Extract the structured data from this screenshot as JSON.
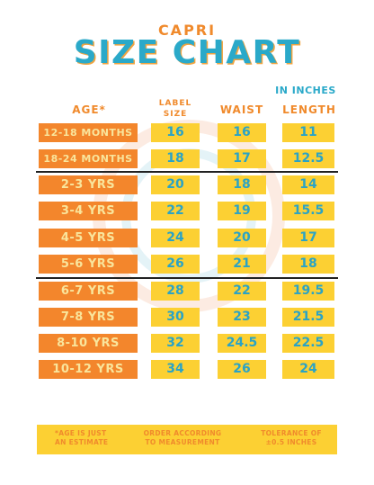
{
  "header": {
    "subtitle": "CAPRI",
    "title": "SIZE CHART",
    "units": "IN INCHES"
  },
  "columns": {
    "age": "AGE*",
    "label_line1": "LABEL",
    "label_line2": "SIZE",
    "waist": "WAIST",
    "length": "LENGTH"
  },
  "rows": [
    {
      "age": "12-18 MONTHS",
      "label": "16",
      "waist": "16",
      "length": "11"
    },
    {
      "age": "18-24 MONTHS",
      "label": "18",
      "waist": "17",
      "length": "12.5"
    },
    {
      "age": "2-3 YRS",
      "label": "20",
      "waist": "18",
      "length": "14"
    },
    {
      "age": "3-4 YRS",
      "label": "22",
      "waist": "19",
      "length": "15.5"
    },
    {
      "age": "4-5 YRS",
      "label": "24",
      "waist": "20",
      "length": "17"
    },
    {
      "age": "5-6 YRS",
      "label": "26",
      "waist": "21",
      "length": "18"
    },
    {
      "age": "6-7 YRS",
      "label": "28",
      "waist": "22",
      "length": "19.5"
    },
    {
      "age": "7-8 YRS",
      "label": "30",
      "waist": "23",
      "length": "21.5"
    },
    {
      "age": "8-10 YRS",
      "label": "32",
      "waist": "24.5",
      "length": "22.5"
    },
    {
      "age": "10-12 YRS",
      "label": "34",
      "waist": "26",
      "length": "24"
    }
  ],
  "footer": {
    "note1_line1": "*AGE IS JUST",
    "note1_line2": "AN ESTIMATE",
    "note2_line1": "ORDER ACCORDING",
    "note2_line2": "TO MEASUREMENT",
    "note3_line1": "TOLERANCE OF",
    "note3_line2": "±0.5 INCHES"
  },
  "colors": {
    "orange": "#f3862c",
    "yellow": "#fcd033",
    "teal": "#2aa9c9",
    "cream_text": "#f9e59c"
  }
}
